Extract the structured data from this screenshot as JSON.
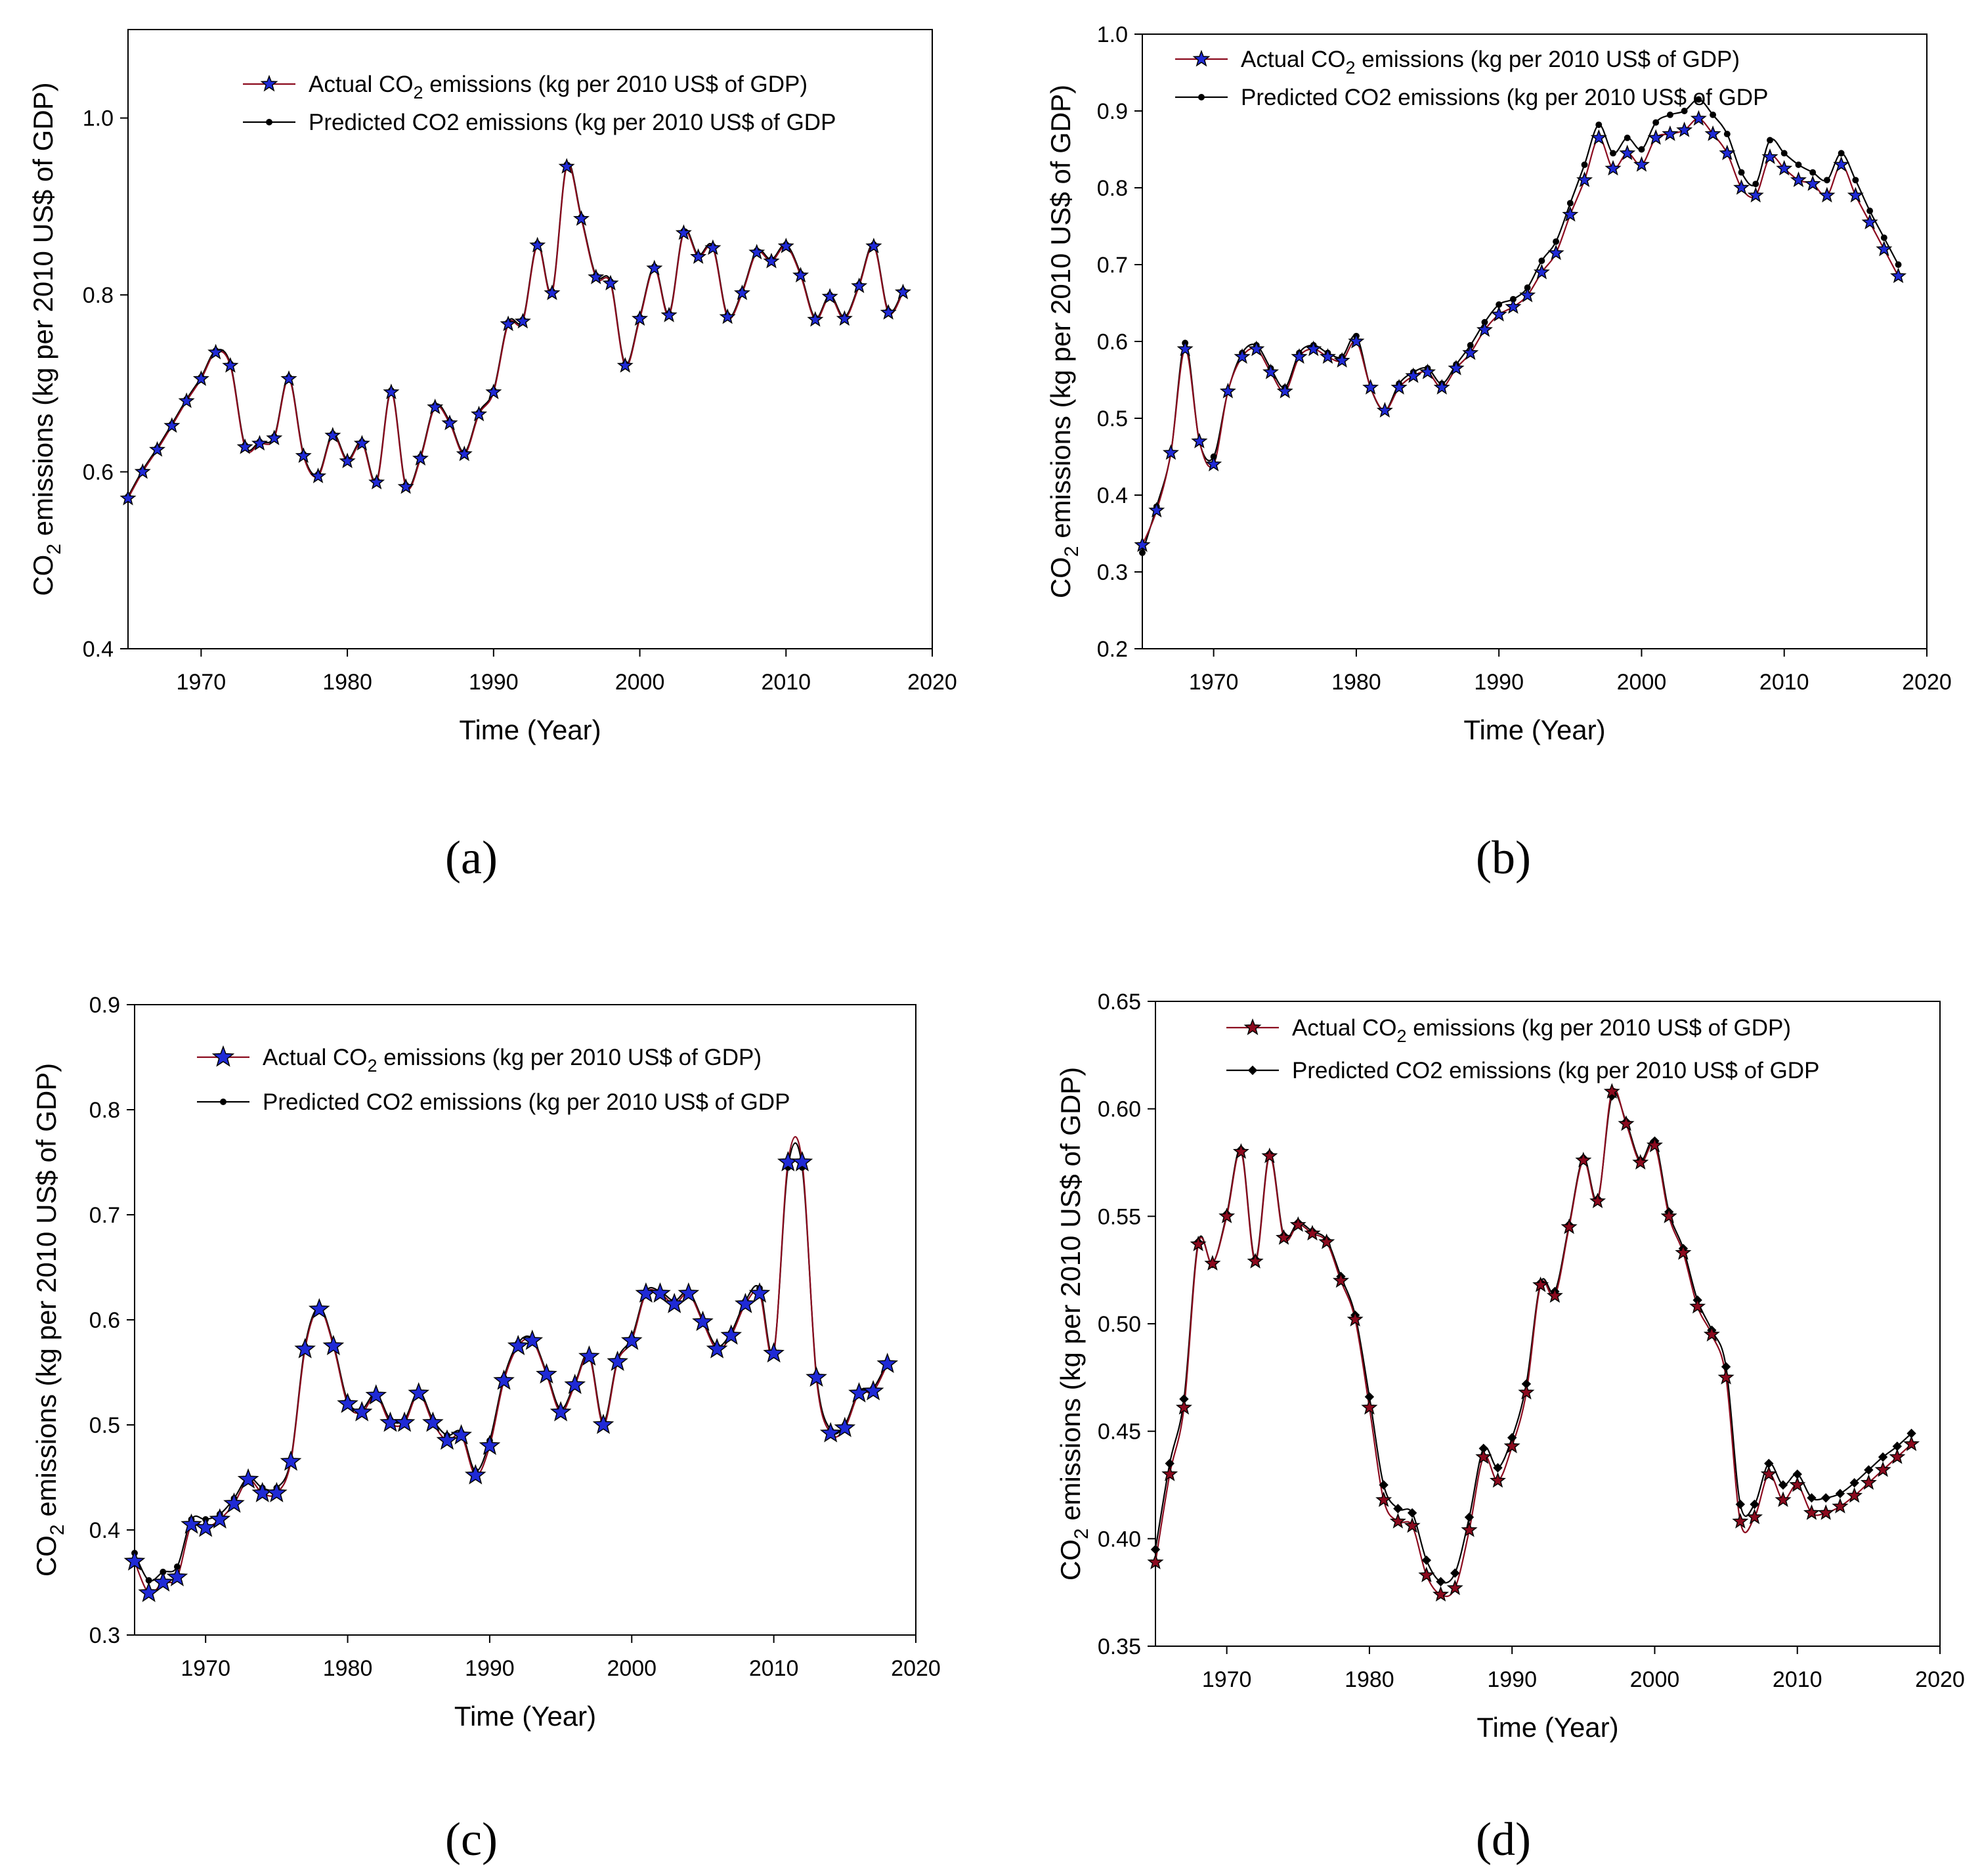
{
  "chart_data": [
    {
      "type": "line",
      "caption": "(a)",
      "xlabel": "Time (Year)",
      "ylabel": "CO2 emissions (kg per 2010 US$ of GDP)",
      "xlim": [
        1965,
        2020
      ],
      "ylim": [
        0.4,
        1.1
      ],
      "xticks": [
        1970,
        1980,
        1990,
        2000,
        2010,
        2020
      ],
      "yticks": [
        0.4,
        0.6,
        0.8,
        1.0
      ],
      "ytick_labels": [
        "0.4",
        "0.6",
        "0.8",
        "1.0"
      ],
      "x": [
        1965,
        1966,
        1967,
        1968,
        1969,
        1970,
        1971,
        1972,
        1973,
        1974,
        1975,
        1976,
        1977,
        1978,
        1979,
        1980,
        1981,
        1982,
        1983,
        1984,
        1985,
        1986,
        1987,
        1988,
        1989,
        1990,
        1991,
        1992,
        1993,
        1994,
        1995,
        1996,
        1997,
        1998,
        1999,
        2000,
        2001,
        2002,
        2003,
        2004,
        2005,
        2006,
        2007,
        2008,
        2009,
        2010,
        2011,
        2012,
        2013,
        2014,
        2015,
        2016,
        2017,
        2018
      ],
      "series": [
        {
          "name": "Actual CO2 emissions (kg per 2010 US$ of GDP)",
          "legend_prefix": "Actual CO",
          "legend_subscript": "2",
          "legend_suffix": " emissions (kg per 2010 US$ of GDP)",
          "marker": "star",
          "marker_color": "#1f2ad6",
          "line_color": "#8b0a1e",
          "values": [
            0.57,
            0.6,
            0.625,
            0.652,
            0.68,
            0.705,
            0.735,
            0.72,
            0.628,
            0.632,
            0.638,
            0.705,
            0.618,
            0.595,
            0.641,
            0.612,
            0.632,
            0.588,
            0.69,
            0.583,
            0.615,
            0.673,
            0.655,
            0.62,
            0.665,
            0.69,
            0.767,
            0.77,
            0.856,
            0.802,
            0.945,
            0.886,
            0.82,
            0.813,
            0.72,
            0.773,
            0.83,
            0.777,
            0.87,
            0.843,
            0.853,
            0.775,
            0.802,
            0.848,
            0.838,
            0.855,
            0.822,
            0.772,
            0.798,
            0.773,
            0.81,
            0.855,
            0.78,
            0.803
          ]
        },
        {
          "name": "Predicted CO2 emissions (kg per 2010 US$ of GDP",
          "legend_prefix": "Predicted CO2 emissions (kg per 2010 US$ of GDP",
          "legend_subscript": "",
          "legend_suffix": "",
          "marker": "dot",
          "marker_color": "#000000",
          "line_color": "#000000",
          "values": [
            0.572,
            0.602,
            0.627,
            0.654,
            0.682,
            0.707,
            0.737,
            0.722,
            0.63,
            0.634,
            0.64,
            0.707,
            0.62,
            0.597,
            0.643,
            0.614,
            0.634,
            0.59,
            0.692,
            0.585,
            0.617,
            0.675,
            0.657,
            0.622,
            0.667,
            0.692,
            0.769,
            0.772,
            0.858,
            0.804,
            0.947,
            0.888,
            0.822,
            0.815,
            0.722,
            0.775,
            0.832,
            0.779,
            0.872,
            0.845,
            0.855,
            0.777,
            0.804,
            0.85,
            0.84,
            0.857,
            0.824,
            0.774,
            0.8,
            0.775,
            0.812,
            0.857,
            0.782,
            0.805
          ]
        }
      ]
    },
    {
      "type": "line",
      "caption": "(b)",
      "xlabel": "Time (Year)",
      "ylabel": "CO2 emissions (kg per 2010 US$ of GDP)",
      "xlim": [
        1965,
        2020
      ],
      "ylim": [
        0.2,
        1.0
      ],
      "xticks": [
        1970,
        1980,
        1990,
        2000,
        2010,
        2020
      ],
      "yticks": [
        0.2,
        0.3,
        0.4,
        0.5,
        0.6,
        0.7,
        0.8,
        0.9,
        1.0
      ],
      "ytick_labels": [
        "0.2",
        "0.3",
        "0.4",
        "0.5",
        "0.6",
        "0.7",
        "0.8",
        "0.9",
        "1.0"
      ],
      "x": [
        1965,
        1966,
        1967,
        1968,
        1969,
        1970,
        1971,
        1972,
        1973,
        1974,
        1975,
        1976,
        1977,
        1978,
        1979,
        1980,
        1981,
        1982,
        1983,
        1984,
        1985,
        1986,
        1987,
        1988,
        1989,
        1990,
        1991,
        1992,
        1993,
        1994,
        1995,
        1996,
        1997,
        1998,
        1999,
        2000,
        2001,
        2002,
        2003,
        2004,
        2005,
        2006,
        2007,
        2008,
        2009,
        2010,
        2011,
        2012,
        2013,
        2014,
        2015,
        2016,
        2017,
        2018
      ],
      "series": [
        {
          "name": "Actual CO2 emissions (kg per 2010 US$ of GDP)",
          "legend_prefix": "Actual CO",
          "legend_subscript": "2",
          "legend_suffix": " emissions (kg per 2010 US$ of GDP)",
          "marker": "star",
          "marker_color": "#1f2ad6",
          "line_color": "#8b0a1e",
          "values": [
            0.335,
            0.38,
            0.455,
            0.59,
            0.47,
            0.44,
            0.535,
            0.58,
            0.59,
            0.56,
            0.535,
            0.58,
            0.59,
            0.58,
            0.575,
            0.6,
            0.54,
            0.51,
            0.54,
            0.555,
            0.56,
            0.54,
            0.565,
            0.585,
            0.615,
            0.635,
            0.645,
            0.66,
            0.69,
            0.715,
            0.765,
            0.81,
            0.865,
            0.825,
            0.845,
            0.83,
            0.865,
            0.87,
            0.875,
            0.89,
            0.87,
            0.845,
            0.8,
            0.79,
            0.84,
            0.825,
            0.81,
            0.805,
            0.79,
            0.83,
            0.79,
            0.755,
            0.72,
            0.685
          ]
        },
        {
          "name": "Predicted CO2 emissions (kg per 2010 US$ of GDP",
          "legend_prefix": "Predicted CO2 emissions (kg per 2010 US$ of GDP",
          "legend_subscript": "",
          "legend_suffix": "",
          "marker": "dot",
          "marker_color": "#000000",
          "line_color": "#000000",
          "values": [
            0.325,
            0.385,
            0.455,
            0.598,
            0.47,
            0.45,
            0.535,
            0.585,
            0.595,
            0.565,
            0.54,
            0.585,
            0.595,
            0.585,
            0.58,
            0.607,
            0.54,
            0.51,
            0.545,
            0.56,
            0.565,
            0.545,
            0.57,
            0.595,
            0.625,
            0.648,
            0.655,
            0.67,
            0.705,
            0.73,
            0.78,
            0.83,
            0.882,
            0.845,
            0.865,
            0.85,
            0.885,
            0.895,
            0.9,
            0.915,
            0.895,
            0.87,
            0.82,
            0.805,
            0.862,
            0.845,
            0.83,
            0.82,
            0.81,
            0.845,
            0.81,
            0.77,
            0.735,
            0.7
          ]
        }
      ]
    },
    {
      "type": "line",
      "caption": "(c)",
      "xlabel": "Time (Year)",
      "ylabel": "CO2 emissions (kg per 2010 US$ of GDP)",
      "xlim": [
        1965,
        2020
      ],
      "ylim": [
        0.3,
        0.9
      ],
      "xticks": [
        1970,
        1980,
        1990,
        2000,
        2010,
        2020
      ],
      "yticks": [
        0.3,
        0.4,
        0.5,
        0.6,
        0.7,
        0.8,
        0.9
      ],
      "ytick_labels": [
        "0.3",
        "0.4",
        "0.5",
        "0.6",
        "0.7",
        "0.8",
        "0.9"
      ],
      "x": [
        1965,
        1966,
        1967,
        1968,
        1969,
        1970,
        1971,
        1972,
        1973,
        1974,
        1975,
        1976,
        1977,
        1978,
        1979,
        1980,
        1981,
        1982,
        1983,
        1984,
        1985,
        1986,
        1987,
        1988,
        1989,
        1990,
        1991,
        1992,
        1993,
        1994,
        1995,
        1996,
        1997,
        1998,
        1999,
        2000,
        2001,
        2002,
        2003,
        2004,
        2005,
        2006,
        2007,
        2008,
        2009,
        2010,
        2011,
        2012,
        2013,
        2014,
        2015,
        2016,
        2017,
        2018
      ],
      "series": [
        {
          "name": "Actual CO2 emissions (kg per 2010 US$ of GDP)",
          "legend_prefix": "Actual CO",
          "legend_subscript": "2",
          "legend_suffix": " emissions (kg per 2010 US$ of GDP)",
          "marker": "star",
          "marker_color": "#1f2ad6",
          "line_color": "#8b0a1e",
          "values": [
            0.37,
            0.34,
            0.35,
            0.355,
            0.405,
            0.402,
            0.41,
            0.425,
            0.448,
            0.435,
            0.435,
            0.465,
            0.572,
            0.61,
            0.575,
            0.52,
            0.512,
            0.528,
            0.502,
            0.502,
            0.53,
            0.502,
            0.485,
            0.49,
            0.452,
            0.48,
            0.542,
            0.575,
            0.58,
            0.548,
            0.512,
            0.538,
            0.565,
            0.5,
            0.56,
            0.58,
            0.625,
            0.625,
            0.615,
            0.625,
            0.598,
            0.572,
            0.585,
            0.615,
            0.625,
            0.568,
            0.75,
            0.75,
            0.545,
            0.492,
            0.497,
            0.53,
            0.532,
            0.558
          ]
        },
        {
          "name": "Predicted CO2 emissions (kg per 2010 US$ of GDP",
          "legend_prefix": "Predicted CO2 emissions (kg per 2010 US$ of GDP",
          "legend_subscript": "",
          "legend_suffix": "",
          "marker": "dot",
          "marker_color": "#000000",
          "line_color": "#000000",
          "values": [
            0.378,
            0.352,
            0.36,
            0.365,
            0.41,
            0.41,
            0.415,
            0.43,
            0.45,
            0.44,
            0.44,
            0.467,
            0.575,
            0.612,
            0.577,
            0.523,
            0.515,
            0.53,
            0.505,
            0.505,
            0.532,
            0.505,
            0.49,
            0.493,
            0.456,
            0.485,
            0.545,
            0.578,
            0.582,
            0.55,
            0.515,
            0.54,
            0.567,
            0.503,
            0.562,
            0.583,
            0.627,
            0.627,
            0.618,
            0.627,
            0.6,
            0.575,
            0.588,
            0.618,
            0.63,
            0.57,
            0.745,
            0.745,
            0.548,
            0.495,
            0.5,
            0.532,
            0.535,
            0.56
          ]
        }
      ]
    },
    {
      "type": "line",
      "caption": "(d)",
      "xlabel": "Time (Year)",
      "ylabel": "CO2 emissions (kg per 2010 US$ of GDP)",
      "xlim": [
        1965,
        2020
      ],
      "ylim": [
        0.35,
        0.65
      ],
      "xticks": [
        1970,
        1980,
        1990,
        2000,
        2010,
        2020
      ],
      "yticks": [
        0.35,
        0.4,
        0.45,
        0.5,
        0.55,
        0.6,
        0.65
      ],
      "ytick_labels": [
        "0.35",
        "0.40",
        "0.45",
        "0.50",
        "0.55",
        "0.60",
        "0.65"
      ],
      "x": [
        1965,
        1966,
        1967,
        1968,
        1969,
        1970,
        1971,
        1972,
        1973,
        1974,
        1975,
        1976,
        1977,
        1978,
        1979,
        1980,
        1981,
        1982,
        1983,
        1984,
        1985,
        1986,
        1987,
        1988,
        1989,
        1990,
        1991,
        1992,
        1993,
        1994,
        1995,
        1996,
        1997,
        1998,
        1999,
        2000,
        2001,
        2002,
        2003,
        2004,
        2005,
        2006,
        2007,
        2008,
        2009,
        2010,
        2011,
        2012,
        2013,
        2014,
        2015,
        2016,
        2017,
        2018
      ],
      "series": [
        {
          "name": "Actual CO2 emissions (kg per 2010 US$ of GDP)",
          "legend_prefix": "Actual CO",
          "legend_subscript": "2",
          "legend_suffix": " emissions (kg per 2010 US$ of GDP)",
          "marker": "star",
          "marker_color": "#8b0a1e",
          "line_color": "#8b0a1e",
          "values": [
            0.389,
            0.43,
            0.461,
            0.537,
            0.528,
            0.55,
            0.58,
            0.529,
            0.578,
            0.54,
            0.546,
            0.542,
            0.538,
            0.52,
            0.502,
            0.461,
            0.418,
            0.408,
            0.406,
            0.383,
            0.374,
            0.377,
            0.404,
            0.438,
            0.427,
            0.443,
            0.468,
            0.518,
            0.513,
            0.545,
            0.576,
            0.557,
            0.608,
            0.593,
            0.575,
            0.583,
            0.55,
            0.533,
            0.508,
            0.495,
            0.475,
            0.408,
            0.41,
            0.43,
            0.418,
            0.425,
            0.412,
            0.412,
            0.415,
            0.42,
            0.426,
            0.432,
            0.438,
            0.444
          ]
        },
        {
          "name": "Predicted CO2 emissions (kg per 2010 US$ of GDP",
          "legend_prefix": "Predicted CO2 emissions (kg per 2010 US$ of GDP",
          "legend_subscript": "",
          "legend_suffix": "",
          "marker": "diamond",
          "marker_color": "#000000",
          "line_color": "#000000",
          "values": [
            0.395,
            0.435,
            0.465,
            0.538,
            0.528,
            0.551,
            0.581,
            0.53,
            0.579,
            0.541,
            0.547,
            0.543,
            0.539,
            0.522,
            0.504,
            0.466,
            0.425,
            0.414,
            0.412,
            0.39,
            0.38,
            0.384,
            0.41,
            0.442,
            0.433,
            0.447,
            0.472,
            0.519,
            0.515,
            0.546,
            0.577,
            0.558,
            0.606,
            0.594,
            0.576,
            0.585,
            0.552,
            0.535,
            0.511,
            0.497,
            0.48,
            0.416,
            0.416,
            0.435,
            0.425,
            0.43,
            0.419,
            0.419,
            0.421,
            0.426,
            0.432,
            0.438,
            0.443,
            0.449
          ]
        }
      ]
    }
  ]
}
